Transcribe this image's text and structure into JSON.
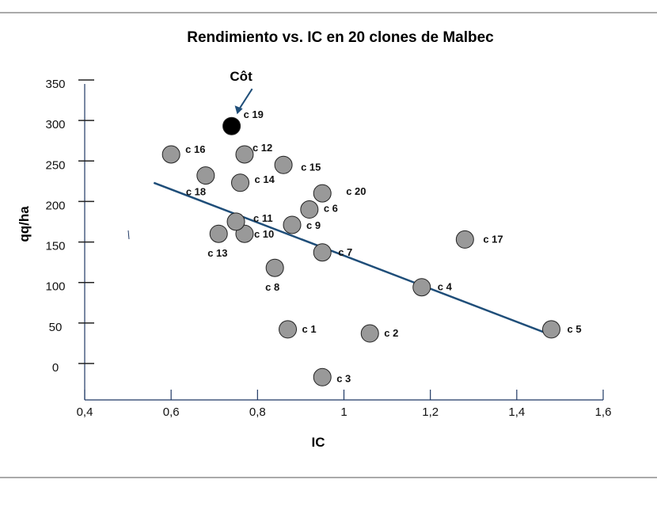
{
  "chart_data": {
    "type": "scatter",
    "title": "Rendimiento vs. IC en 20 clones de Malbec",
    "xlabel": "IC",
    "ylabel": "qq/ha",
    "xlim": [
      0.4,
      1.6
    ],
    "ylim": [
      -40,
      360
    ],
    "x_ticks": [
      0.4,
      0.6,
      0.8,
      1.0,
      1.2,
      1.4,
      1.6
    ],
    "x_tick_labels": [
      "0,4",
      "0,6",
      "0,8",
      "1",
      "1,2",
      "1,4",
      "1,6"
    ],
    "y_ticks": [
      0,
      50,
      100,
      150,
      200,
      250,
      300,
      350
    ],
    "y_tick_labels": [
      "0",
      "50",
      "100",
      "150",
      "200",
      "250",
      "300",
      "350"
    ],
    "grid": false,
    "point_color": "#999999",
    "highlight_color": "#000000",
    "trend_color": "#1f4e79",
    "axis_color": "#1f3864",
    "points": [
      {
        "label": "c 1",
        "x": 0.87,
        "y": 47
      },
      {
        "label": "c 2",
        "x": 1.06,
        "y": 42
      },
      {
        "label": "c 3",
        "x": 0.95,
        "y": -12
      },
      {
        "label": "c 4",
        "x": 1.18,
        "y": 99
      },
      {
        "label": "c 5",
        "x": 1.48,
        "y": 47
      },
      {
        "label": "c 6",
        "x": 0.92,
        "y": 195
      },
      {
        "label": "c 7",
        "x": 0.95,
        "y": 142
      },
      {
        "label": "c 8",
        "x": 0.84,
        "y": 123
      },
      {
        "label": "c 9",
        "x": 0.88,
        "y": 176
      },
      {
        "label": "c 10",
        "x": 0.77,
        "y": 165
      },
      {
        "label": "c 11",
        "x": 0.75,
        "y": 180
      },
      {
        "label": "c 12",
        "x": 0.77,
        "y": 263
      },
      {
        "label": "c 13",
        "x": 0.71,
        "y": 165
      },
      {
        "label": "c 14",
        "x": 0.76,
        "y": 228
      },
      {
        "label": "c 15",
        "x": 0.86,
        "y": 250
      },
      {
        "label": "c 16",
        "x": 0.6,
        "y": 263
      },
      {
        "label": "c 17",
        "x": 1.28,
        "y": 158
      },
      {
        "label": "c 18",
        "x": 0.68,
        "y": 237
      },
      {
        "label": "c 19",
        "x": 0.74,
        "y": 298,
        "highlight": true
      },
      {
        "label": "c 20",
        "x": 0.95,
        "y": 215
      }
    ],
    "trendline": {
      "x": [
        0.56,
        1.48
      ],
      "y": [
        228,
        40
      ]
    },
    "annotations": [
      {
        "text": "Côt",
        "target": "c 19"
      }
    ]
  }
}
